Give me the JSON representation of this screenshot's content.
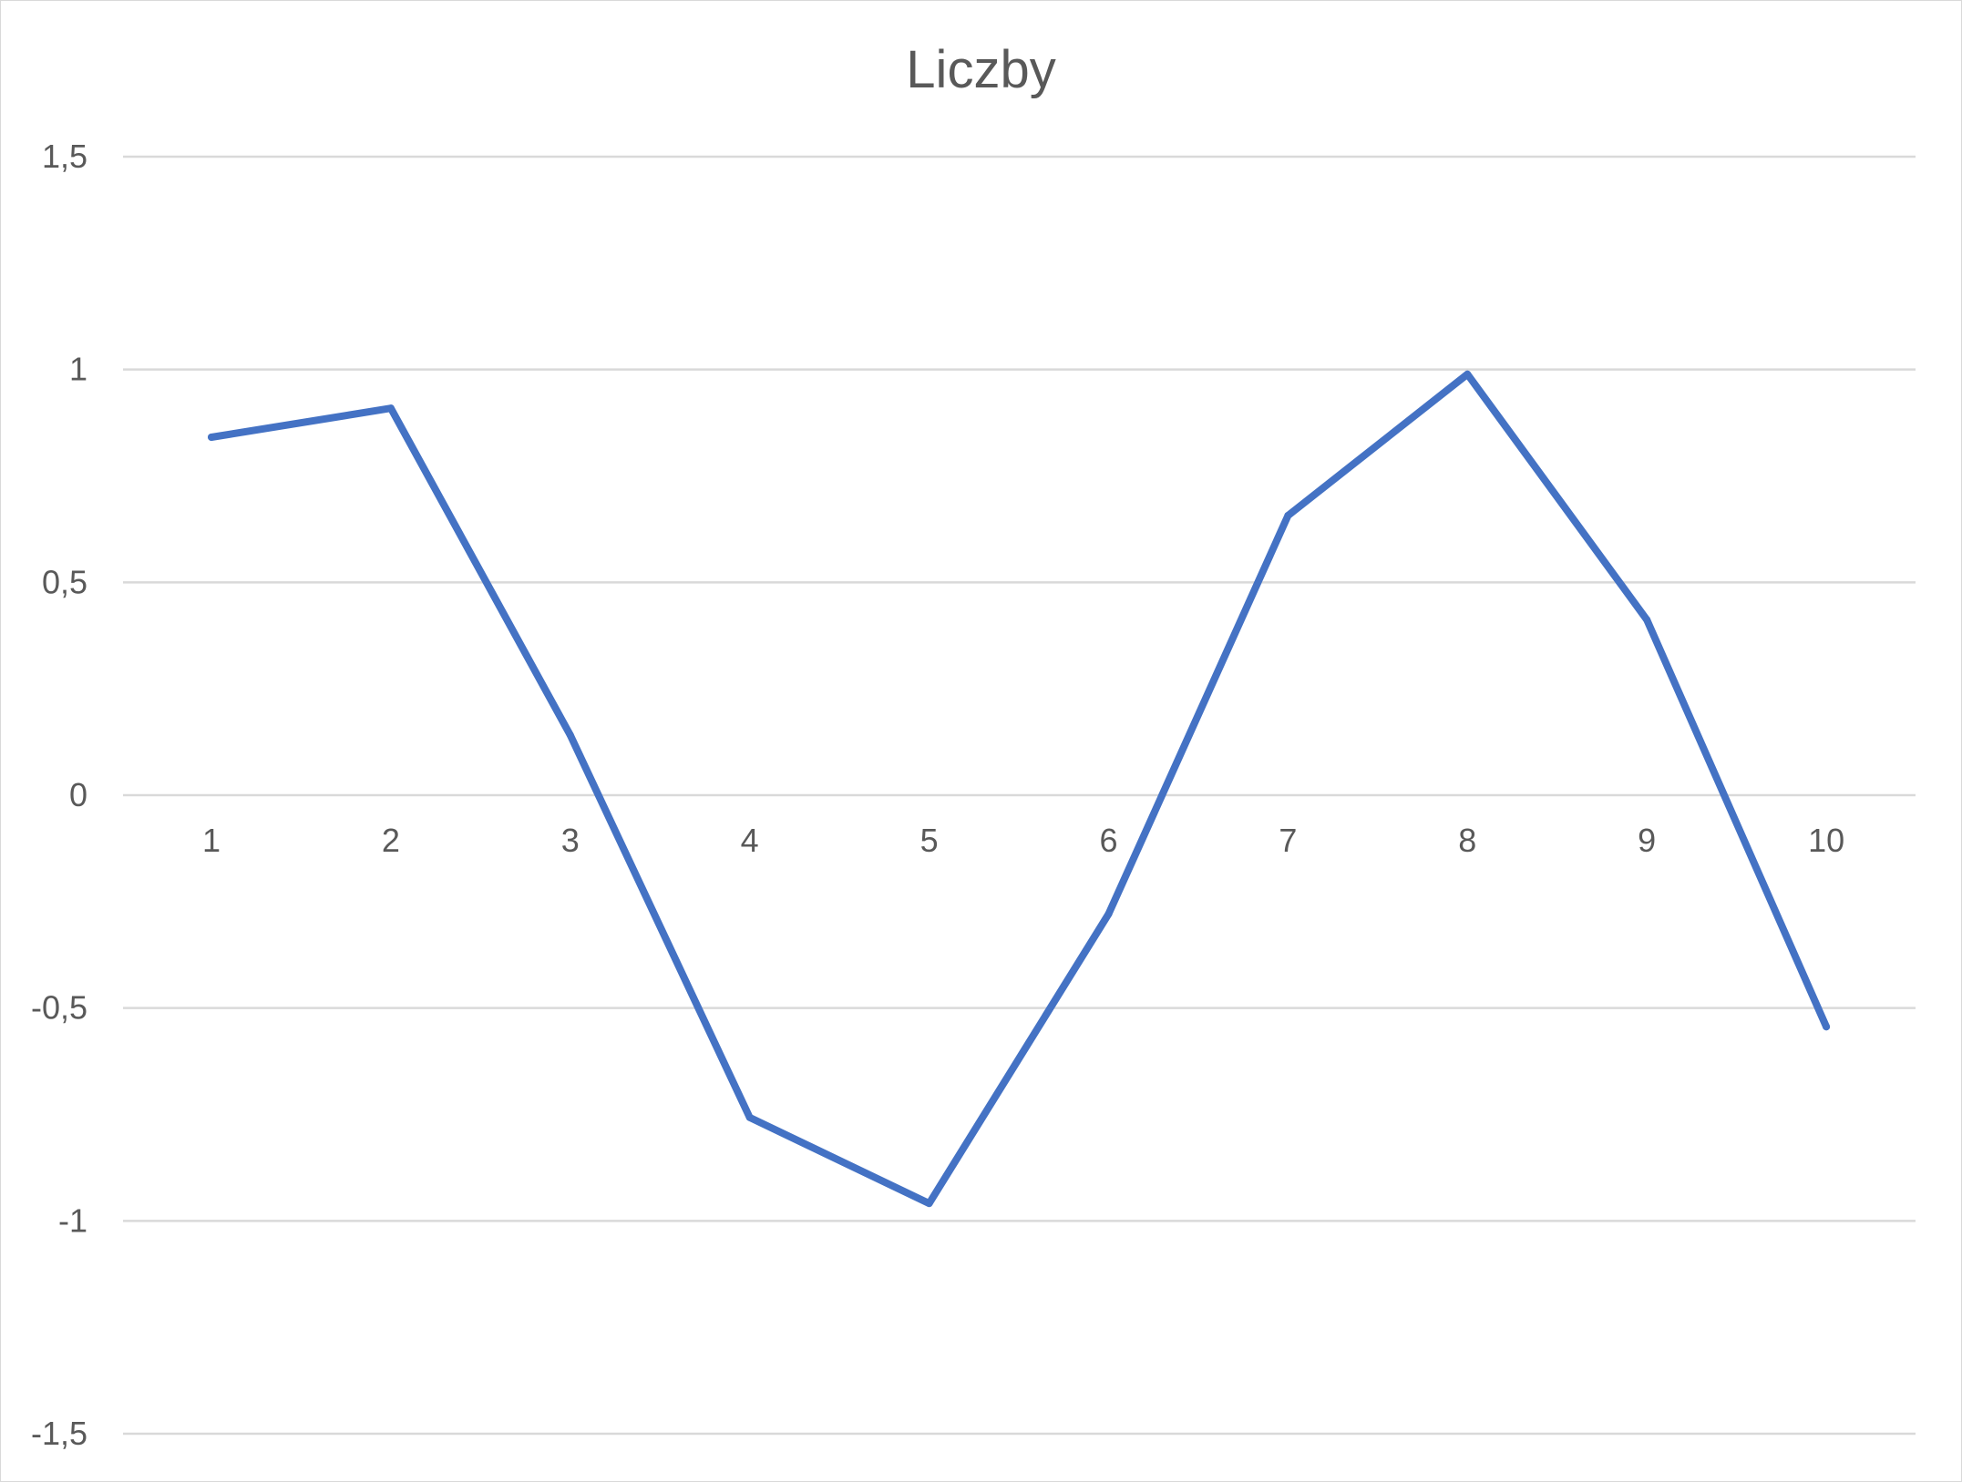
{
  "chart_data": {
    "type": "line",
    "title": "Liczby",
    "categories": [
      "1",
      "2",
      "3",
      "4",
      "5",
      "6",
      "7",
      "8",
      "9",
      "10"
    ],
    "series": [
      {
        "values": [
          0.841,
          0.909,
          0.141,
          -0.757,
          -0.959,
          -0.279,
          0.657,
          0.989,
          0.412,
          -0.544
        ],
        "color": "#4472c4"
      }
    ],
    "y_ticks": [
      "1,5",
      "1",
      "0,5",
      "0",
      "-0,5",
      "-1",
      "-1,5"
    ],
    "y_tick_values": [
      1.5,
      1,
      0.5,
      0,
      -0.5,
      -1,
      -1.5
    ],
    "ylim": [
      -1.5,
      1.5
    ],
    "xlabel": "",
    "ylabel": "",
    "grid": true,
    "legend": false,
    "colors": {
      "gridline": "#d9d9d9",
      "text": "#595959",
      "line": "#4472c4"
    }
  }
}
